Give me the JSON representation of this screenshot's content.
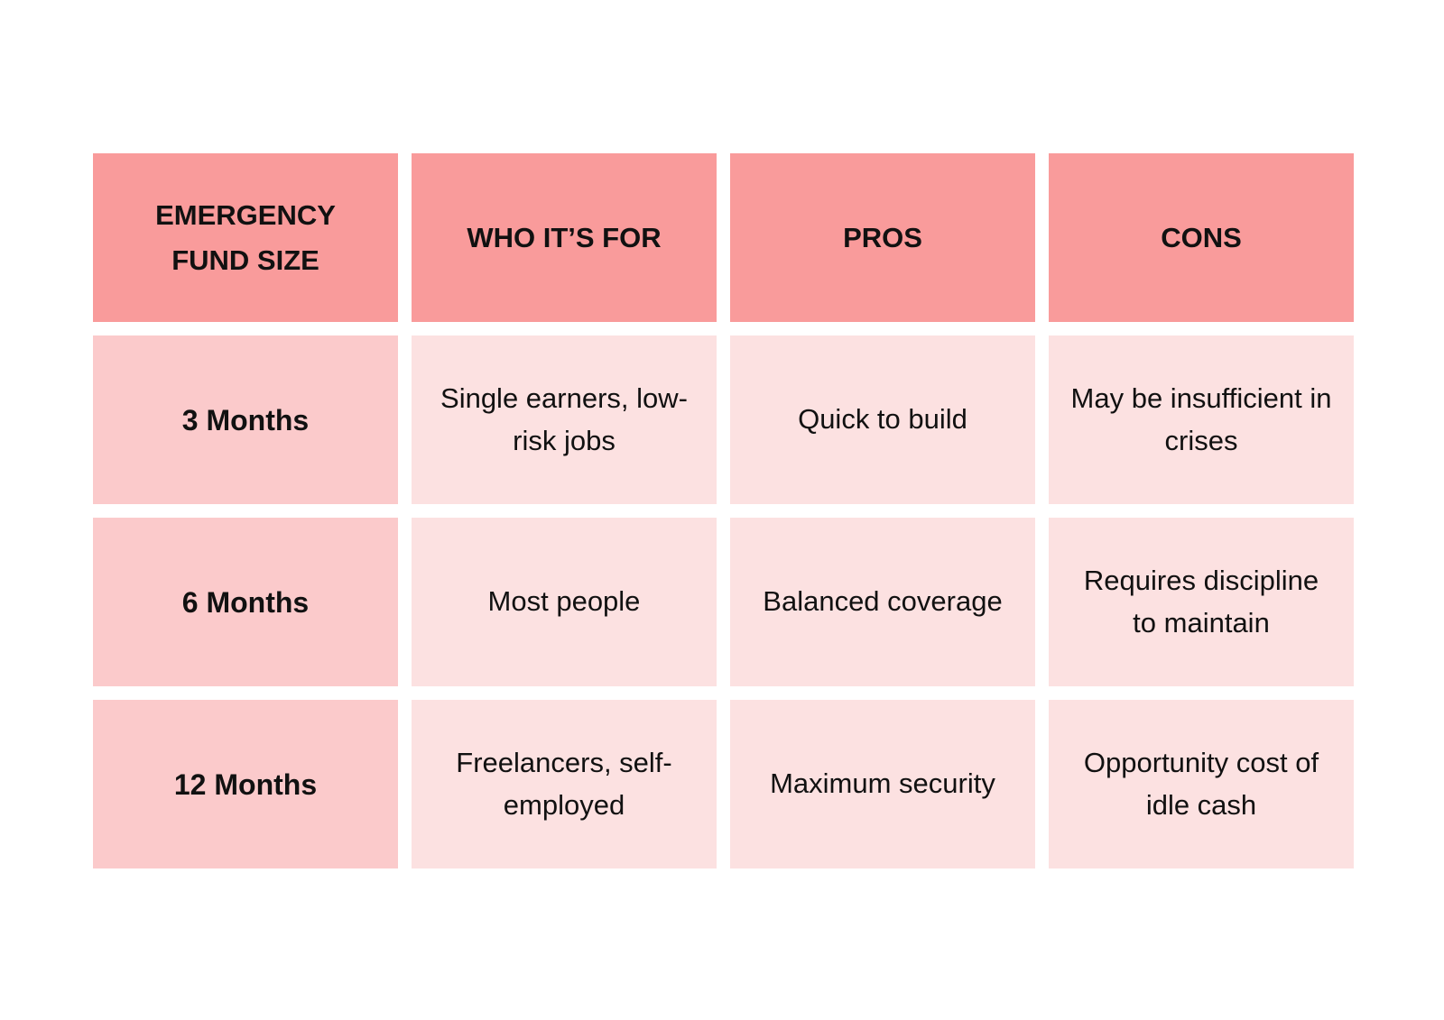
{
  "table": {
    "headers": [
      "EMERGENCY FUND SIZE",
      "WHO IT’S FOR",
      "PROS",
      "CONS"
    ],
    "rows": [
      {
        "size": "3 Months",
        "who": "Single earners, low-risk jobs",
        "pros": "Quick to build",
        "cons": "May be insufficient in crises"
      },
      {
        "size": "6 Months",
        "who": "Most people",
        "pros": "Balanced coverage",
        "cons": "Requires discipline to maintain"
      },
      {
        "size": "12 Months",
        "who": "Freelancers, self-employed",
        "pros": "Maximum security",
        "cons": "Opportunity cost of idle cash"
      }
    ]
  },
  "colors": {
    "header_bg": "#f99b9b",
    "row_header_bg": "#fbcacb",
    "cell_bg": "#fce1e1",
    "text": "#111111"
  }
}
